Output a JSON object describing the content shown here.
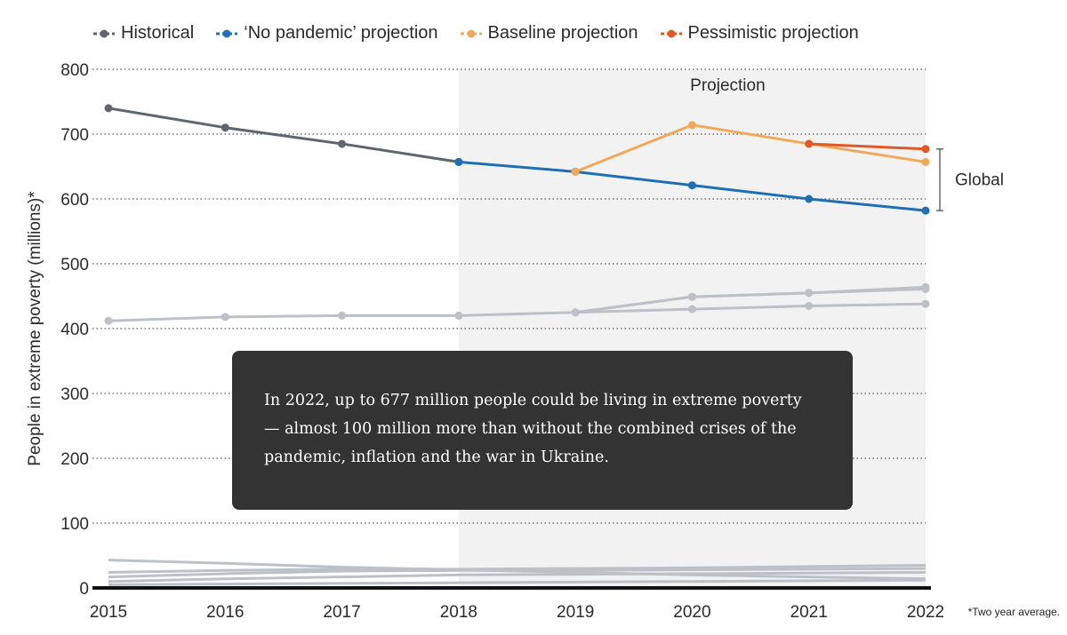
{
  "chart_data": {
    "type": "line",
    "x": [
      "2015",
      "2016",
      "2017",
      "2018",
      "2019",
      "2020",
      "2021",
      "2022"
    ],
    "ylabel": "People in extreme poverty (millions)*",
    "ylim": [
      0,
      800
    ],
    "yticks": [
      0,
      100,
      200,
      300,
      400,
      500,
      600,
      700,
      800
    ],
    "grid": true,
    "legend_position": "top-left",
    "projection_label": "Projection",
    "projection_start": "2018",
    "bracket_label": "Global",
    "series": [
      {
        "name": "Historical",
        "color": "#5f6670",
        "x": [
          "2015",
          "2016",
          "2017",
          "2018"
        ],
        "values": [
          740,
          710,
          685,
          657
        ],
        "in_legend": true
      },
      {
        "name": "‘No pandemic’ projection",
        "color": "#1f6fb2",
        "x": [
          "2018",
          "2019",
          "2020",
          "2021",
          "2022"
        ],
        "values": [
          657,
          642,
          621,
          600,
          582
        ],
        "in_legend": true
      },
      {
        "name": "Baseline projection",
        "color": "#f0a95a",
        "x": [
          "2019",
          "2020",
          "2021",
          "2022"
        ],
        "values": [
          642,
          714,
          685,
          657
        ],
        "in_legend": true
      },
      {
        "name": "Pessimistic projection",
        "color": "#e05a28",
        "x": [
          "2021",
          "2022"
        ],
        "values": [
          685,
          677
        ],
        "in_legend": true
      },
      {
        "name": "Regional historical",
        "color": "#bcc1c8",
        "x": [
          "2015",
          "2016",
          "2017",
          "2018",
          "2019"
        ],
        "values": [
          412,
          418,
          420,
          420,
          425
        ],
        "in_legend": false
      },
      {
        "name": "Regional scenario A",
        "color": "#bcc1c8",
        "x": [
          "2019",
          "2020",
          "2021",
          "2022"
        ],
        "values": [
          425,
          449,
          455,
          464
        ],
        "in_legend": false
      },
      {
        "name": "Regional scenario B",
        "color": "#bcc1c8",
        "x": [
          "2019",
          "2020",
          "2021",
          "2022"
        ],
        "values": [
          425,
          449,
          455,
          461
        ],
        "in_legend": false
      },
      {
        "name": "Regional scenario C",
        "color": "#bcc1c8",
        "x": [
          "2019",
          "2020",
          "2021",
          "2022"
        ],
        "values": [
          425,
          430,
          435,
          438
        ],
        "in_legend": false
      },
      {
        "name": "Minor region 1",
        "color": "#bcc1c8",
        "x": [
          "2015",
          "2016",
          "2017",
          "2018",
          "2019",
          "2020",
          "2021",
          "2022"
        ],
        "values": [
          43,
          38,
          32,
          28,
          24,
          20,
          17,
          14
        ],
        "in_legend": false
      },
      {
        "name": "Minor region 2",
        "color": "#bcc1c8",
        "x": [
          "2015",
          "2016",
          "2017",
          "2018",
          "2019",
          "2020",
          "2021",
          "2022"
        ],
        "values": [
          24,
          27,
          29,
          29,
          30,
          31,
          33,
          35
        ],
        "in_legend": false
      },
      {
        "name": "Minor region 3",
        "color": "#bcc1c8",
        "x": [
          "2015",
          "2016",
          "2017",
          "2018",
          "2019",
          "2020",
          "2021",
          "2022"
        ],
        "values": [
          17,
          22,
          26,
          27,
          27,
          28,
          29,
          30
        ],
        "in_legend": false
      },
      {
        "name": "Minor region 4",
        "color": "#bcc1c8",
        "x": [
          "2015",
          "2016",
          "2017",
          "2018",
          "2019",
          "2020",
          "2021",
          "2022"
        ],
        "values": [
          10,
          14,
          17,
          20,
          21,
          22,
          23,
          24
        ],
        "in_legend": false
      },
      {
        "name": "Minor region 5",
        "color": "#bcc1c8",
        "x": [
          "2015",
          "2016",
          "2017",
          "2018",
          "2019",
          "2020",
          "2021",
          "2022"
        ],
        "values": [
          5,
          6,
          7,
          8,
          9,
          10,
          11,
          12
        ],
        "in_legend": false
      }
    ]
  },
  "callout": {
    "text": "In 2022, up to 677 million people could be living in extreme poverty — almost 100 million more than without the combined crises of the pandemic, inflation and the war in Ukraine."
  },
  "footnote": "*Two year average."
}
